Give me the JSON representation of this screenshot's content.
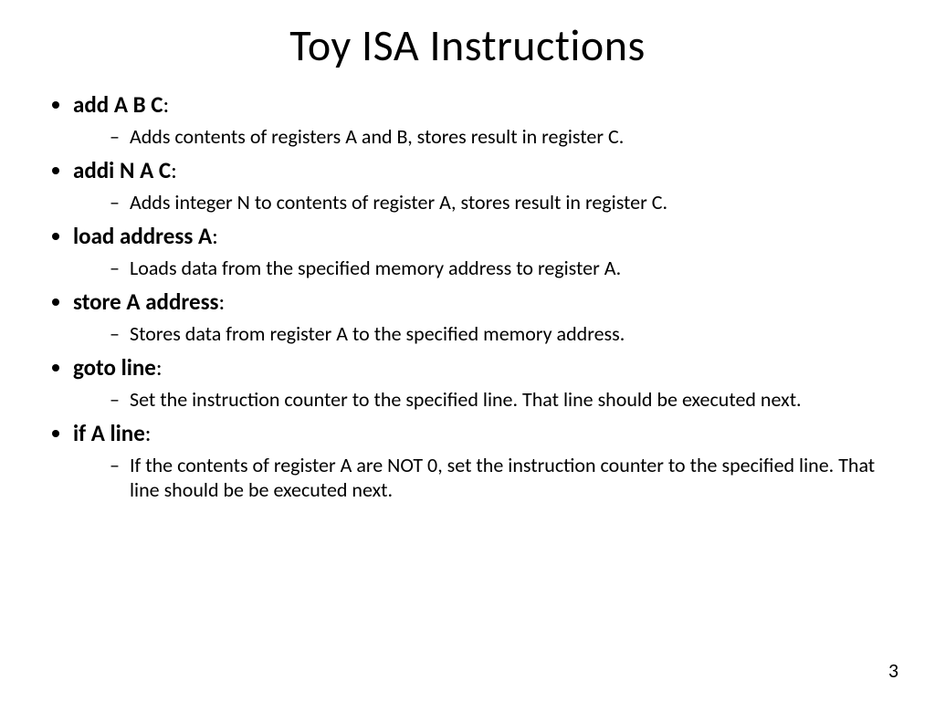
{
  "title": "Toy ISA Instructions",
  "page_number": "3",
  "colors": {
    "background": "#ffffff",
    "text": "#000000"
  },
  "typography": {
    "title_fontsize": 48,
    "item_fontsize": 25,
    "sub_fontsize": 22,
    "font_family": "Calibri"
  },
  "instructions": [
    {
      "name": "add A B C",
      "desc": "Adds contents of registers A and B, stores result in register C."
    },
    {
      "name": "addi N A C",
      "desc": "Adds integer N to contents of register A, stores result in register C."
    },
    {
      "name": "load address A",
      "desc": "Loads data from the specified memory address to register A."
    },
    {
      "name": "store A address",
      "desc": "Stores data from register A to the specified memory address."
    },
    {
      "name": "goto line",
      "desc": "Set the instruction counter to the specified line. That line should be executed next."
    },
    {
      "name": "if A line",
      "desc": "If the contents of register A are NOT 0, set the instruction counter to the specified line. That line should be be executed next."
    }
  ]
}
